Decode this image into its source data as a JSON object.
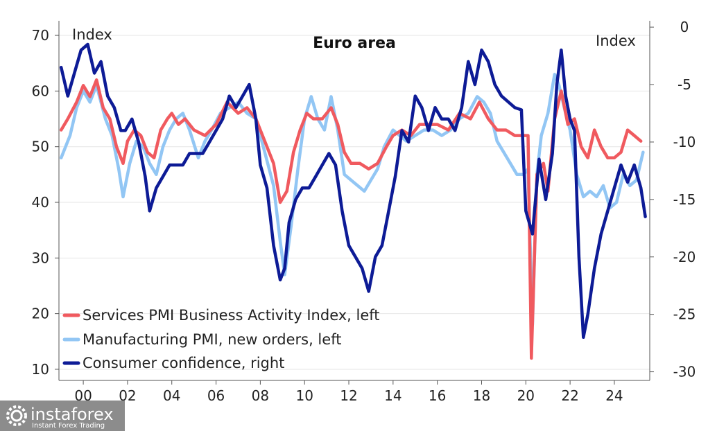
{
  "chart_data": {
    "type": "line",
    "title": "Euro area",
    "left_axis": {
      "label": "Index",
      "ylim": [
        8,
        72
      ],
      "ticks": [
        10,
        20,
        30,
        40,
        50,
        60,
        70
      ]
    },
    "right_axis": {
      "label": "Index",
      "ylim": [
        -30.75,
        0.25
      ],
      "ticks": [
        0,
        -5,
        -10,
        -15,
        -20,
        -25,
        -30
      ]
    },
    "x_axis": {
      "xlim": [
        1998.9,
        2025.6
      ],
      "ticks": [
        {
          "value": 2000,
          "label": "00"
        },
        {
          "value": 2002,
          "label": "02"
        },
        {
          "value": 2004,
          "label": "04"
        },
        {
          "value": 2006,
          "label": "06"
        },
        {
          "value": 2008,
          "label": "08"
        },
        {
          "value": 2010,
          "label": "10"
        },
        {
          "value": 2012,
          "label": "12"
        },
        {
          "value": 2014,
          "label": "14"
        },
        {
          "value": 2016,
          "label": "16"
        },
        {
          "value": 2018,
          "label": "18"
        },
        {
          "value": 2020,
          "label": "20"
        },
        {
          "value": 2022,
          "label": "22"
        },
        {
          "value": 2024,
          "label": "24"
        }
      ]
    },
    "grid": true,
    "legend_position": "bottom-left",
    "series": [
      {
        "name": "Services PMI Business Activity Index, left",
        "axis": "left",
        "color": "#f05a5f",
        "x": [
          1999.0,
          1999.3,
          1999.7,
          2000.0,
          2000.3,
          2000.6,
          2000.9,
          2001.2,
          2001.5,
          2001.8,
          2002.0,
          2002.3,
          2002.6,
          2002.9,
          2003.2,
          2003.5,
          2003.8,
          2004.0,
          2004.3,
          2004.6,
          2005.0,
          2005.5,
          2006.0,
          2006.5,
          2007.0,
          2007.4,
          2007.8,
          2008.2,
          2008.6,
          2008.9,
          2009.2,
          2009.5,
          2009.8,
          2010.1,
          2010.4,
          2010.8,
          2011.2,
          2011.5,
          2011.8,
          2012.1,
          2012.5,
          2012.9,
          2013.3,
          2013.7,
          2014.0,
          2014.4,
          2014.8,
          2015.2,
          2015.6,
          2016.0,
          2016.5,
          2017.0,
          2017.5,
          2017.9,
          2018.3,
          2018.7,
          2019.1,
          2019.5,
          2019.9,
          2020.1,
          2020.25,
          2020.5,
          2020.8,
          2021.0,
          2021.3,
          2021.6,
          2021.9,
          2022.2,
          2022.5,
          2022.8,
          2023.1,
          2023.4,
          2023.7,
          2024.0,
          2024.3,
          2024.6,
          2024.9,
          2025.2
        ],
        "values": [
          53,
          55,
          58,
          61,
          59,
          62,
          57,
          55,
          50,
          47,
          51,
          53,
          52,
          49,
          48,
          53,
          55,
          56,
          54,
          55,
          53,
          52,
          54,
          58,
          56,
          57,
          55,
          51,
          47,
          40,
          42,
          49,
          53,
          56,
          55,
          55,
          57,
          54,
          49,
          47,
          47,
          46,
          47,
          50,
          52,
          53,
          52,
          54,
          54,
          54,
          53,
          56,
          55,
          58,
          55,
          53,
          53,
          52,
          52,
          52,
          12,
          45,
          47,
          42,
          55,
          60,
          54,
          55,
          50,
          48,
          53,
          50,
          48,
          48,
          49,
          53,
          52,
          51
        ]
      },
      {
        "name": "Manufacturing PMI, new orders, left",
        "axis": "left",
        "color": "#92c6f4",
        "x": [
          1999.0,
          1999.4,
          1999.7,
          2000.0,
          2000.3,
          2000.6,
          2001.0,
          2001.3,
          2001.6,
          2001.8,
          2002.1,
          2002.4,
          2002.7,
          2003.0,
          2003.3,
          2003.6,
          2003.9,
          2004.2,
          2004.5,
          2004.8,
          2005.2,
          2005.5,
          2005.8,
          2006.2,
          2006.6,
          2007.0,
          2007.4,
          2007.8,
          2008.2,
          2008.6,
          2008.9,
          2009.1,
          2009.4,
          2009.7,
          2010.0,
          2010.3,
          2010.6,
          2010.9,
          2011.2,
          2011.5,
          2011.8,
          2012.1,
          2012.4,
          2012.7,
          2013.0,
          2013.3,
          2013.6,
          2014.0,
          2014.3,
          2014.6,
          2015.0,
          2015.4,
          2015.8,
          2016.2,
          2016.6,
          2017.0,
          2017.4,
          2017.8,
          2018.1,
          2018.4,
          2018.7,
          2019.0,
          2019.3,
          2019.6,
          2019.9,
          2020.1,
          2020.3,
          2020.5,
          2020.7,
          2021.0,
          2021.3,
          2021.5,
          2021.8,
          2022.0,
          2022.3,
          2022.6,
          2022.9,
          2023.2,
          2023.5,
          2023.8,
          2024.1,
          2024.4,
          2024.7,
          2025.0,
          2025.3
        ],
        "values": [
          48,
          52,
          57,
          60,
          58,
          61,
          55,
          52,
          46,
          41,
          47,
          51,
          50,
          47,
          45,
          50,
          53,
          55,
          56,
          53,
          48,
          51,
          53,
          56,
          57,
          58,
          56,
          55,
          49,
          43,
          33,
          27,
          36,
          46,
          55,
          59,
          55,
          53,
          59,
          53,
          45,
          44,
          43,
          42,
          44,
          46,
          50,
          53,
          52,
          51,
          52,
          53,
          53,
          52,
          53,
          55,
          56,
          59,
          58,
          56,
          51,
          49,
          47,
          45,
          45,
          46,
          18,
          45,
          52,
          56,
          63,
          61,
          56,
          53,
          45,
          41,
          42,
          41,
          43,
          39,
          40,
          45,
          43,
          44,
          49
        ]
      },
      {
        "name": "Consumer confidence, right",
        "axis": "right",
        "color": "#0d1b96",
        "x": [
          1999.0,
          1999.3,
          1999.6,
          1999.9,
          2000.2,
          2000.5,
          2000.8,
          2001.1,
          2001.4,
          2001.7,
          2001.9,
          2002.2,
          2002.5,
          2002.8,
          2003.0,
          2003.3,
          2003.6,
          2003.9,
          2004.2,
          2004.5,
          2004.8,
          2005.1,
          2005.4,
          2005.7,
          2006.0,
          2006.3,
          2006.6,
          2006.9,
          2007.2,
          2007.5,
          2007.8,
          2008.0,
          2008.3,
          2008.6,
          2008.9,
          2009.1,
          2009.3,
          2009.6,
          2009.9,
          2010.2,
          2010.5,
          2010.8,
          2011.1,
          2011.4,
          2011.7,
          2012.0,
          2012.3,
          2012.6,
          2012.9,
          2013.2,
          2013.5,
          2013.8,
          2014.1,
          2014.4,
          2014.7,
          2015.0,
          2015.3,
          2015.6,
          2015.9,
          2016.2,
          2016.5,
          2016.8,
          2017.1,
          2017.4,
          2017.7,
          2018.0,
          2018.3,
          2018.6,
          2018.9,
          2019.2,
          2019.5,
          2019.8,
          2020.0,
          2020.3,
          2020.6,
          2020.9,
          2021.2,
          2021.4,
          2021.6,
          2021.8,
          2022.0,
          2022.2,
          2022.4,
          2022.6,
          2022.8,
          2023.1,
          2023.4,
          2023.7,
          2024.0,
          2024.3,
          2024.6,
          2024.9,
          2025.2,
          2025.4
        ],
        "values": [
          -3.5,
          -6,
          -4,
          -2,
          -1.5,
          -4,
          -3,
          -6,
          -7,
          -9,
          -9,
          -8,
          -10,
          -13,
          -16,
          -14,
          -13,
          -12,
          -12,
          -12,
          -11,
          -11,
          -11,
          -10,
          -9,
          -8,
          -6,
          -7,
          -6,
          -5,
          -8,
          -12,
          -14,
          -19,
          -22,
          -21,
          -17,
          -15,
          -14,
          -14,
          -13,
          -12,
          -11,
          -12,
          -16,
          -19,
          -20,
          -21,
          -23,
          -20,
          -19,
          -16,
          -13,
          -9,
          -10,
          -6,
          -7,
          -9,
          -7,
          -8,
          -8,
          -9,
          -7,
          -3,
          -5,
          -2,
          -3,
          -5,
          -6,
          -6.5,
          -7,
          -7.2,
          -16,
          -18,
          -11.5,
          -15,
          -11,
          -5,
          -2,
          -6,
          -8,
          -9,
          -20,
          -27,
          -25,
          -21,
          -18,
          -16,
          -14,
          -12,
          -13.5,
          -12,
          -14,
          -16.5
        ]
      }
    ]
  },
  "watermark": {
    "brand": "instaforex",
    "tagline": "Instant Forex Trading",
    "icon": "gear-icon"
  }
}
